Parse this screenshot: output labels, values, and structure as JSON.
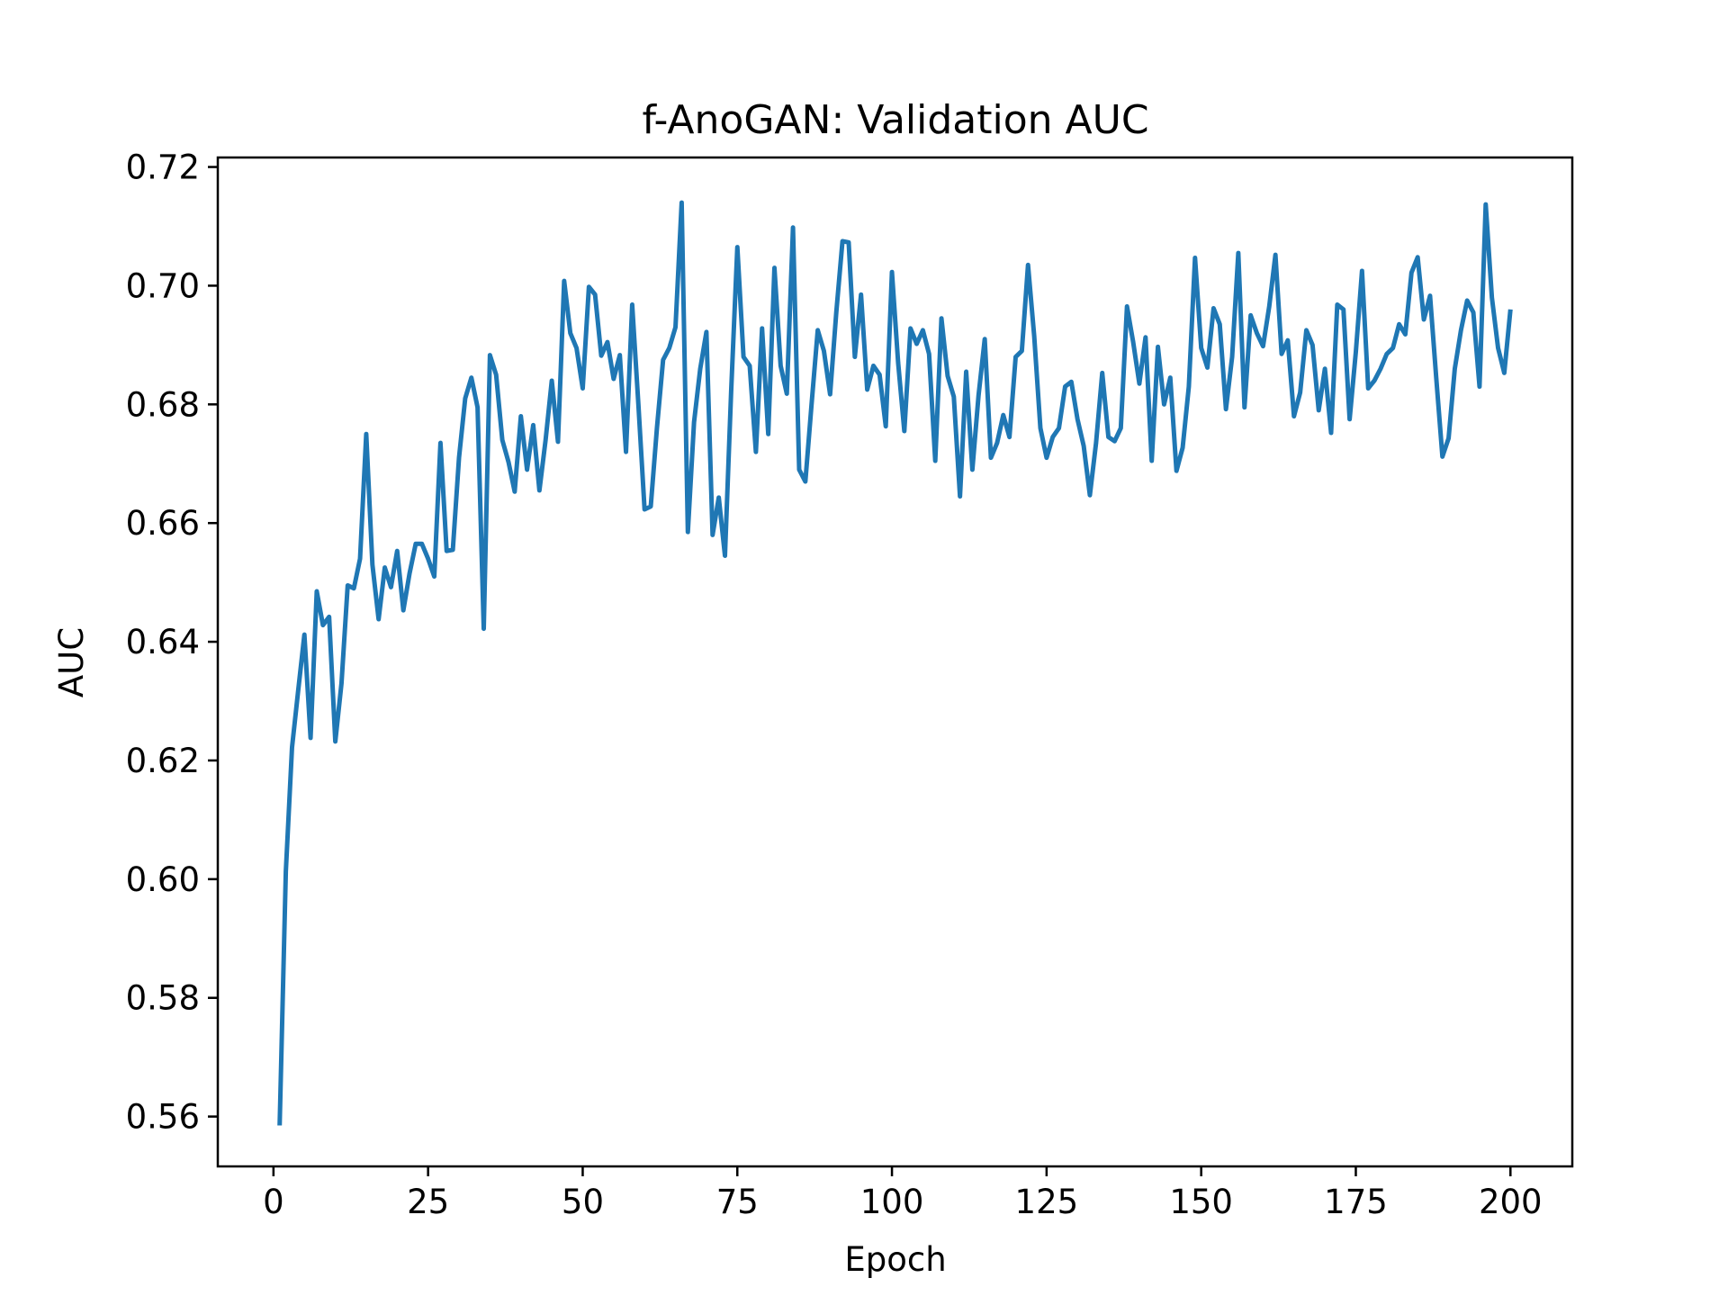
{
  "chart_data": {
    "type": "line",
    "title": "f-AnoGAN: Validation AUC",
    "xlabel": "Epoch",
    "ylabel": "AUC",
    "xlim": [
      -9,
      210
    ],
    "ylim": [
      0.5516,
      0.7216
    ],
    "xticks": [
      0,
      25,
      50,
      75,
      100,
      125,
      150,
      175,
      200
    ],
    "yticks": [
      0.56,
      0.58,
      0.6,
      0.62,
      0.64,
      0.66,
      0.68,
      0.7,
      0.72
    ],
    "ytick_labels": [
      "0.56",
      "0.58",
      "0.60",
      "0.62",
      "0.64",
      "0.66",
      "0.68",
      "0.70",
      "0.72"
    ],
    "grid": false,
    "colors": {
      "line": "#1f77b4",
      "axes": "#000000"
    },
    "series": [
      {
        "x": [
          1,
          2,
          3,
          4,
          5,
          6,
          7,
          8,
          9,
          10,
          11,
          12,
          13,
          14,
          15,
          16,
          17,
          18,
          19,
          20,
          21,
          22,
          23,
          24,
          25,
          26,
          27,
          28,
          29,
          30,
          31,
          32,
          33,
          34,
          35,
          36,
          37,
          38,
          39,
          40,
          41,
          42,
          43,
          44,
          45,
          46,
          47,
          48,
          49,
          50,
          51,
          52,
          53,
          54,
          55,
          56,
          57,
          58,
          59,
          60,
          61,
          62,
          63,
          64,
          65,
          66,
          67,
          68,
          69,
          70,
          71,
          72,
          73,
          74,
          75,
          76,
          77,
          78,
          79,
          80,
          81,
          82,
          83,
          84,
          85,
          86,
          87,
          88,
          89,
          90,
          91,
          92,
          93,
          94,
          95,
          96,
          97,
          98,
          99,
          100,
          101,
          102,
          103,
          104,
          105,
          106,
          107,
          108,
          109,
          110,
          111,
          112,
          113,
          114,
          115,
          116,
          117,
          118,
          119,
          120,
          121,
          122,
          123,
          124,
          125,
          126,
          127,
          128,
          129,
          130,
          131,
          132,
          133,
          134,
          135,
          136,
          137,
          138,
          139,
          140,
          141,
          142,
          143,
          144,
          145,
          146,
          147,
          148,
          149,
          150,
          151,
          152,
          153,
          154,
          155,
          156,
          157,
          158,
          159,
          160,
          161,
          162,
          163,
          164,
          165,
          166,
          167,
          168,
          169,
          170,
          171,
          172,
          173,
          174,
          175,
          176,
          177,
          178,
          179,
          180,
          181,
          182,
          183,
          184,
          185,
          186,
          187,
          188,
          189,
          190,
          191,
          192,
          193,
          194,
          195,
          196,
          197,
          198,
          199,
          200
        ],
        "values": [
          0.5585,
          0.6013,
          0.6222,
          0.6318,
          0.6412,
          0.6238,
          0.6485,
          0.6428,
          0.6442,
          0.6232,
          0.633,
          0.6495,
          0.649,
          0.654,
          0.675,
          0.653,
          0.6438,
          0.6525,
          0.6492,
          0.6553,
          0.6453,
          0.6515,
          0.6565,
          0.6565,
          0.654,
          0.651,
          0.6735,
          0.6553,
          0.6555,
          0.671,
          0.681,
          0.6845,
          0.6795,
          0.6422,
          0.6883,
          0.685,
          0.674,
          0.6703,
          0.6653,
          0.678,
          0.669,
          0.6765,
          0.6655,
          0.674,
          0.684,
          0.6737,
          0.7008,
          0.692,
          0.6895,
          0.6827,
          0.6998,
          0.6985,
          0.6882,
          0.6905,
          0.6843,
          0.6883,
          0.672,
          0.6968,
          0.68,
          0.6623,
          0.6628,
          0.676,
          0.6875,
          0.6895,
          0.693,
          0.714,
          0.6585,
          0.677,
          0.686,
          0.6922,
          0.658,
          0.6643,
          0.6545,
          0.6822,
          0.7065,
          0.688,
          0.6865,
          0.672,
          0.6928,
          0.675,
          0.703,
          0.6865,
          0.6818,
          0.7098,
          0.669,
          0.667,
          0.68,
          0.6925,
          0.689,
          0.6817,
          0.6955,
          0.7075,
          0.7073,
          0.688,
          0.6985,
          0.6825,
          0.6865,
          0.685,
          0.6763,
          0.7023,
          0.687,
          0.6755,
          0.6928,
          0.6902,
          0.6925,
          0.6885,
          0.6705,
          0.6945,
          0.6848,
          0.6813,
          0.6645,
          0.6855,
          0.669,
          0.6815,
          0.691,
          0.671,
          0.6735,
          0.6782,
          0.6745,
          0.688,
          0.689,
          0.7035,
          0.6915,
          0.676,
          0.671,
          0.6745,
          0.676,
          0.683,
          0.6838,
          0.6775,
          0.673,
          0.6647,
          0.6735,
          0.6853,
          0.6745,
          0.6738,
          0.676,
          0.6965,
          0.6905,
          0.6835,
          0.6913,
          0.6705,
          0.6897,
          0.68,
          0.6845,
          0.6688,
          0.6727,
          0.683,
          0.7047,
          0.6895,
          0.6862,
          0.6962,
          0.6935,
          0.6792,
          0.688,
          0.7055,
          0.6795,
          0.695,
          0.692,
          0.6898,
          0.6965,
          0.7052,
          0.6885,
          0.6908,
          0.678,
          0.682,
          0.6925,
          0.69,
          0.679,
          0.686,
          0.6752,
          0.6968,
          0.696,
          0.6775,
          0.6888,
          0.7025,
          0.6827,
          0.684,
          0.686,
          0.6885,
          0.6895,
          0.6935,
          0.6918,
          0.7022,
          0.7048,
          0.6943,
          0.6983,
          0.6845,
          0.6712,
          0.6743,
          0.686,
          0.6925,
          0.6975,
          0.6955,
          0.683,
          0.7137,
          0.698,
          0.6895,
          0.6853,
          0.696
        ]
      }
    ]
  }
}
